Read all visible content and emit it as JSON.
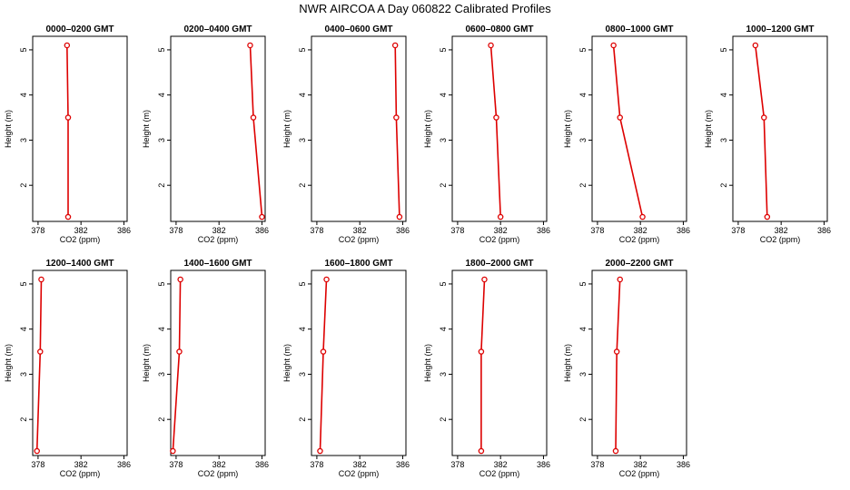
{
  "title": "NWR AIRCOA A  Day 060822  Calibrated Profiles",
  "colors": {
    "series": "#dd0000",
    "axis": "#000000",
    "background": "#ffffff"
  },
  "chart_data": [
    {
      "type": "line",
      "title": "0000–0200 GMT",
      "xlabel": "CO2 (ppm)",
      "ylabel": "Height (m)",
      "xlim": [
        377.5,
        386.3
      ],
      "ylim": [
        1.2,
        5.3
      ],
      "xticks": [
        "378",
        "382",
        "386"
      ],
      "yticks": [
        "2",
        "3",
        "4",
        "5"
      ],
      "grid": false,
      "series": [
        {
          "x": [
            380.8,
            380.8,
            380.7
          ],
          "y": [
            1.3,
            3.5,
            5.1
          ]
        }
      ]
    },
    {
      "type": "line",
      "title": "0200–0400 GMT",
      "xlabel": "CO2 (ppm)",
      "ylabel": "Height (m)",
      "xlim": [
        377.5,
        386.3
      ],
      "ylim": [
        1.2,
        5.3
      ],
      "xticks": [
        "378",
        "382",
        "386"
      ],
      "yticks": [
        "2",
        "3",
        "4",
        "5"
      ],
      "grid": false,
      "series": [
        {
          "x": [
            386.0,
            385.2,
            384.9
          ],
          "y": [
            1.3,
            3.5,
            5.1
          ]
        }
      ]
    },
    {
      "type": "line",
      "title": "0400–0600 GMT",
      "xlabel": "CO2 (ppm)",
      "ylabel": "Height (m)",
      "xlim": [
        377.5,
        386.3
      ],
      "ylim": [
        1.2,
        5.3
      ],
      "xticks": [
        "378",
        "382",
        "386"
      ],
      "yticks": [
        "2",
        "3",
        "4",
        "5"
      ],
      "grid": false,
      "series": [
        {
          "x": [
            385.7,
            385.4,
            385.3
          ],
          "y": [
            1.3,
            3.5,
            5.1
          ]
        }
      ]
    },
    {
      "type": "line",
      "title": "0600–0800 GMT",
      "xlabel": "CO2 (ppm)",
      "ylabel": "Height (m)",
      "xlim": [
        377.5,
        386.3
      ],
      "ylim": [
        1.2,
        5.3
      ],
      "xticks": [
        "378",
        "382",
        "386"
      ],
      "yticks": [
        "2",
        "3",
        "4",
        "5"
      ],
      "grid": false,
      "series": [
        {
          "x": [
            382.0,
            381.6,
            381.1
          ],
          "y": [
            1.3,
            3.5,
            5.1
          ]
        }
      ]
    },
    {
      "type": "line",
      "title": "0800–1000 GMT",
      "xlabel": "CO2 (ppm)",
      "ylabel": "Height (m)",
      "xlim": [
        377.5,
        386.3
      ],
      "ylim": [
        1.2,
        5.3
      ],
      "xticks": [
        "378",
        "382",
        "386"
      ],
      "yticks": [
        "2",
        "3",
        "4",
        "5"
      ],
      "grid": false,
      "series": [
        {
          "x": [
            382.2,
            380.1,
            379.5
          ],
          "y": [
            1.3,
            3.5,
            5.1
          ]
        }
      ]
    },
    {
      "type": "line",
      "title": "1000–1200 GMT",
      "xlabel": "CO2 (ppm)",
      "ylabel": "Height (m)",
      "xlim": [
        377.5,
        386.3
      ],
      "ylim": [
        1.2,
        5.3
      ],
      "xticks": [
        "378",
        "382",
        "386"
      ],
      "yticks": [
        "2",
        "3",
        "4",
        "5"
      ],
      "grid": false,
      "series": [
        {
          "x": [
            380.7,
            380.4,
            379.6
          ],
          "y": [
            1.3,
            3.5,
            5.1
          ]
        }
      ]
    },
    {
      "type": "line",
      "title": "1200–1400 GMT",
      "xlabel": "CO2 (ppm)",
      "ylabel": "Height (m)",
      "xlim": [
        377.5,
        386.3
      ],
      "ylim": [
        1.2,
        5.3
      ],
      "xticks": [
        "378",
        "382",
        "386"
      ],
      "yticks": [
        "2",
        "3",
        "4",
        "5"
      ],
      "grid": false,
      "series": [
        {
          "x": [
            377.9,
            378.2,
            378.3
          ],
          "y": [
            1.3,
            3.5,
            5.1
          ]
        }
      ]
    },
    {
      "type": "line",
      "title": "1400–1600 GMT",
      "xlabel": "CO2 (ppm)",
      "ylabel": "Height (m)",
      "xlim": [
        377.5,
        386.3
      ],
      "ylim": [
        1.2,
        5.3
      ],
      "xticks": [
        "378",
        "382",
        "386"
      ],
      "yticks": [
        "2",
        "3",
        "4",
        "5"
      ],
      "grid": false,
      "series": [
        {
          "x": [
            377.7,
            378.3,
            378.4
          ],
          "y": [
            1.3,
            3.5,
            5.1
          ]
        }
      ]
    },
    {
      "type": "line",
      "title": "1600–1800 GMT",
      "xlabel": "CO2 (ppm)",
      "ylabel": "Height (m)",
      "xlim": [
        377.5,
        386.3
      ],
      "ylim": [
        1.2,
        5.3
      ],
      "xticks": [
        "378",
        "382",
        "386"
      ],
      "yticks": [
        "2",
        "3",
        "4",
        "5"
      ],
      "grid": false,
      "series": [
        {
          "x": [
            378.3,
            378.6,
            378.9
          ],
          "y": [
            1.3,
            3.5,
            5.1
          ]
        }
      ]
    },
    {
      "type": "line",
      "title": "1800–2000 GMT",
      "xlabel": "CO2 (ppm)",
      "ylabel": "Height (m)",
      "xlim": [
        377.5,
        386.3
      ],
      "ylim": [
        1.2,
        5.3
      ],
      "xticks": [
        "378",
        "382",
        "386"
      ],
      "yticks": [
        "2",
        "3",
        "4",
        "5"
      ],
      "grid": false,
      "series": [
        {
          "x": [
            380.2,
            380.2,
            380.5
          ],
          "y": [
            1.3,
            3.5,
            5.1
          ]
        }
      ]
    },
    {
      "type": "line",
      "title": "2000–2200 GMT",
      "xlabel": "CO2 (ppm)",
      "ylabel": "Height (m)",
      "xlim": [
        377.5,
        386.3
      ],
      "ylim": [
        1.2,
        5.3
      ],
      "xticks": [
        "378",
        "382",
        "386"
      ],
      "yticks": [
        "2",
        "3",
        "4",
        "5"
      ],
      "grid": false,
      "series": [
        {
          "x": [
            379.7,
            379.8,
            380.1
          ],
          "y": [
            1.3,
            3.5,
            5.1
          ]
        }
      ]
    }
  ]
}
